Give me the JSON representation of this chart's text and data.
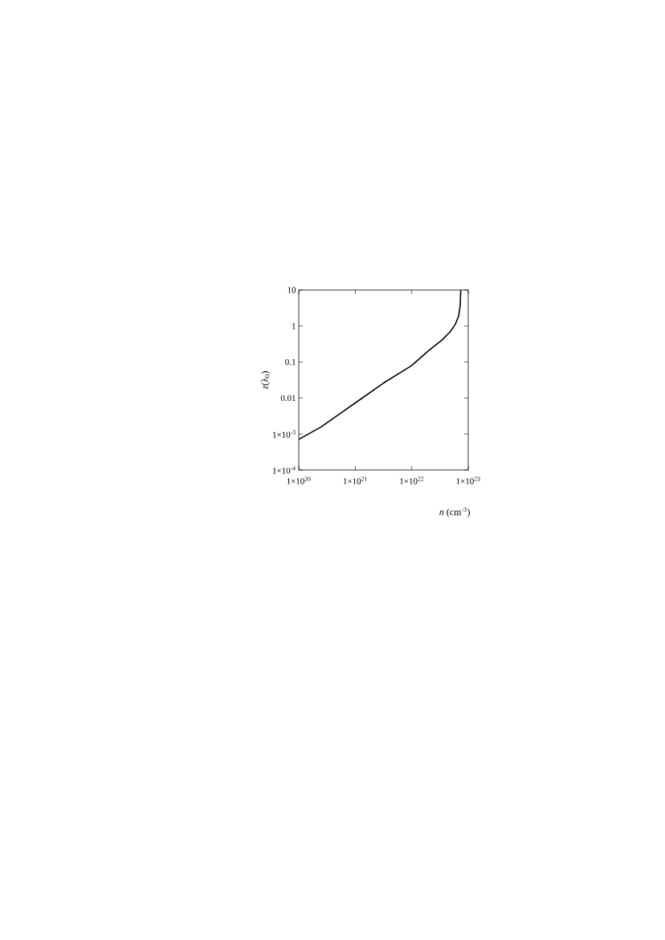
{
  "chart_data": {
    "type": "line",
    "xlabel": "*n* (cm$^{-3}$)",
    "ylabel": "*z*(λ$_{0}$)",
    "log": "xy",
    "x": [
      1e+20,
      2.45e+20,
      1e+21,
      3.16e+21,
      1e+22,
      1.97e+22,
      3.41e+22,
      4.74e+22,
      5.9e+22,
      6.75e+22,
      7.2e+22,
      7.36e+22
    ],
    "series": [
      {
        "color": "#000000",
        "values": [
          0.00071,
          0.00155,
          0.0073,
          0.026,
          0.08,
          0.205,
          0.406,
          0.68,
          1.12,
          1.88,
          3.7,
          10
        ]
      }
    ],
    "xlim": [
      1e+20,
      1e+23
    ],
    "ylim": [
      0.0001,
      10
    ],
    "xticks": [
      {
        "value": 1e+20,
        "label": "1×10$^{20}$"
      },
      {
        "value": 1e+21,
        "label": "1×10$^{21}$"
      },
      {
        "value": 1e+22,
        "label": "1×10$^{22}$"
      },
      {
        "value": 1e+23,
        "label": "1×10$^{23}$"
      }
    ],
    "yticks": [
      {
        "value": 0.0001,
        "label": "1×10$^{-4}$"
      },
      {
        "value": 0.001,
        "label": "1×10$^{-3}$"
      },
      0.01,
      0.1,
      1,
      10
    ],
    "marker": "none",
    "line_style": "solid"
  }
}
